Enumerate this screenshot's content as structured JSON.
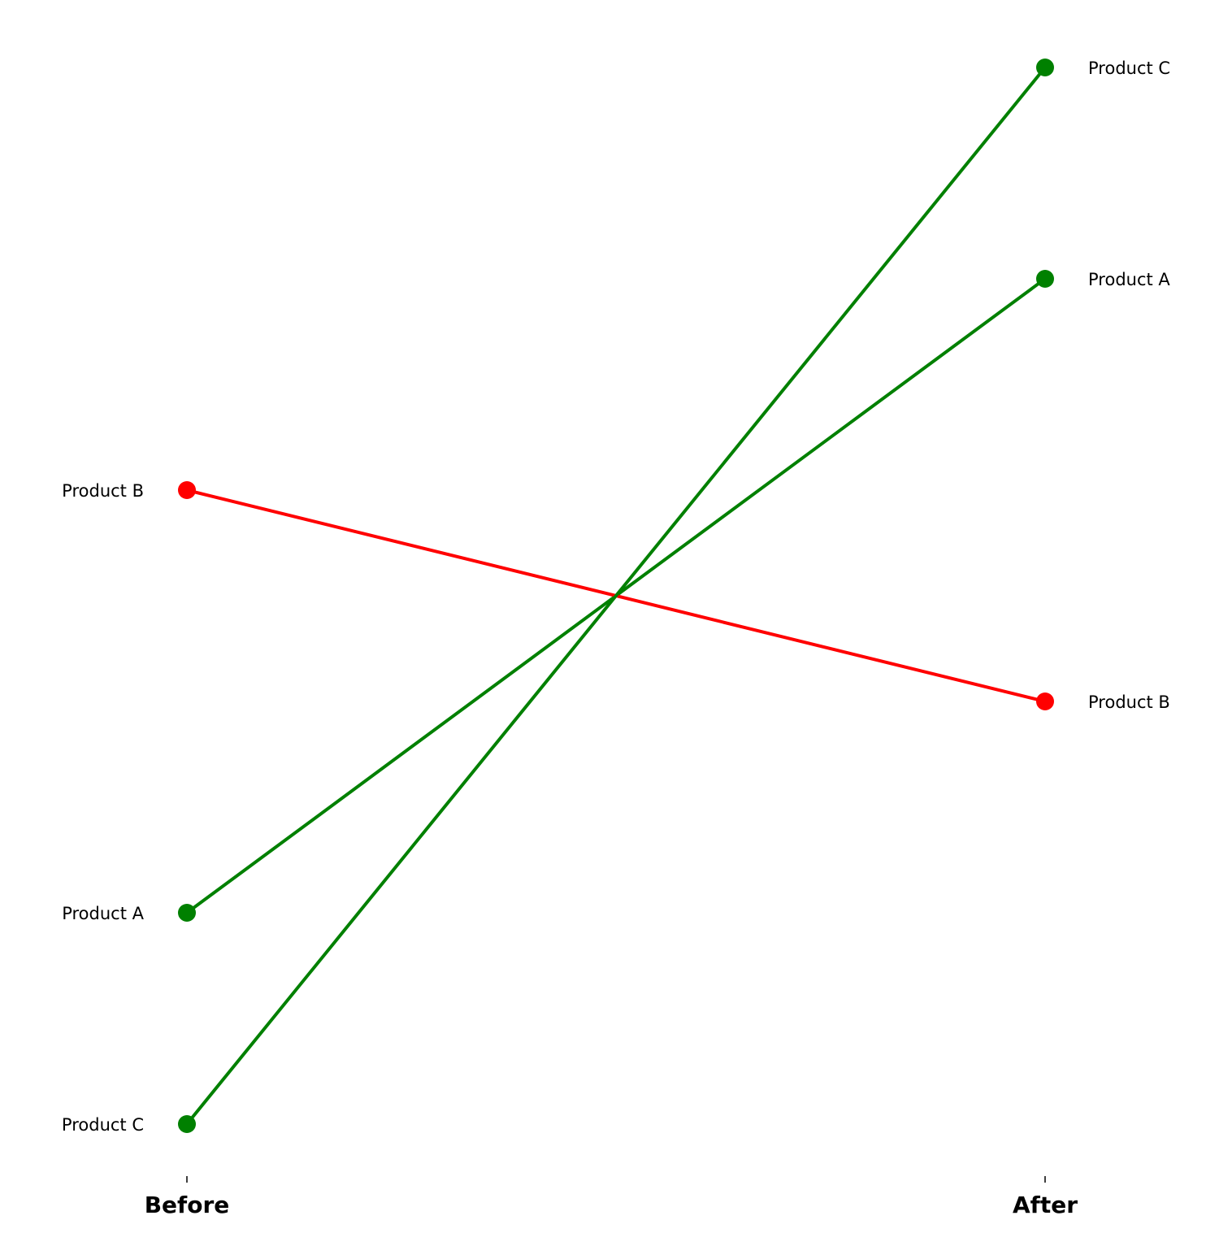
{
  "chart_data": {
    "type": "line",
    "subtype": "slope",
    "categories": [
      "Before",
      "After"
    ],
    "series": [
      {
        "name": "Product A",
        "values": [
          20,
          50
        ],
        "color": "#008000"
      },
      {
        "name": "Product B",
        "values": [
          40,
          30
        ],
        "color": "#ff0000"
      },
      {
        "name": "Product C",
        "values": [
          10,
          60
        ],
        "color": "#008000"
      }
    ],
    "colors": {
      "increase": "#008000",
      "decrease": "#ff0000"
    },
    "ylim": [
      7.5,
      62.5
    ],
    "y_axis_visible": false,
    "grid": false,
    "legend": "none"
  }
}
